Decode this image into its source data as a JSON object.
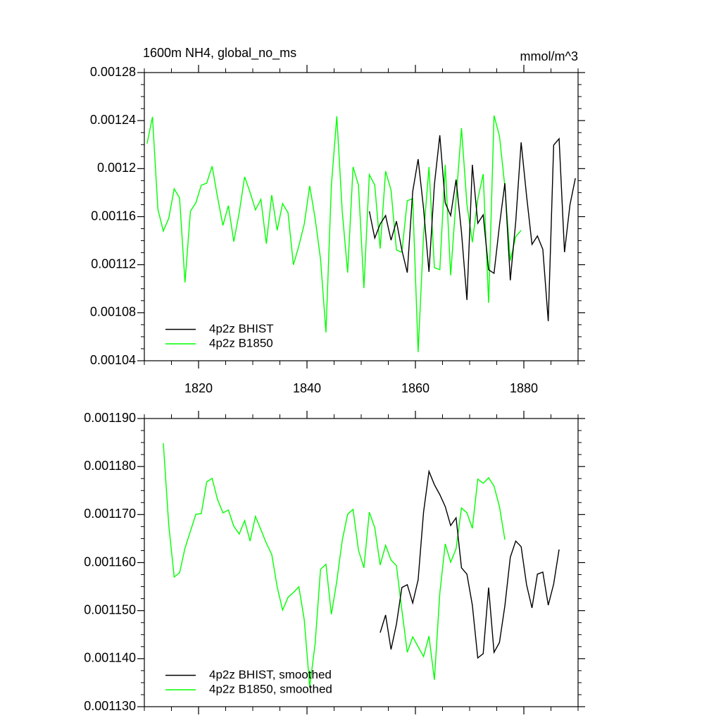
{
  "chart_data": [
    {
      "type": "line",
      "title": "1600m NH4, global_no_ms",
      "units": "mmol/m^3",
      "xlim": [
        1810,
        1890
      ],
      "xticks": [
        1820,
        1840,
        1860,
        1880
      ],
      "ylim": [
        0.00104,
        0.00128
      ],
      "yticks": [
        0.00104,
        0.00108,
        0.00112,
        0.00116,
        0.0012,
        0.00124,
        0.00128
      ],
      "legend": "bottom-left",
      "series": [
        {
          "name": "4p2z BHIST",
          "color": "#000000",
          "x": [
            1851.5,
            1852.5,
            1853.5,
            1854.5,
            1855.5,
            1856.5,
            1857.5,
            1858.5,
            1859.5,
            1860.5,
            1861.5,
            1862.5,
            1863.5,
            1864.5,
            1865.5,
            1866.5,
            1867.5,
            1868.5,
            1869.5,
            1870.5,
            1871.5,
            1872.5,
            1873.5,
            1874.5,
            1875.5,
            1876.5,
            1877.5,
            1878.5,
            1879.5,
            1880.5,
            1881.5,
            1882.5,
            1883.5,
            1884.5,
            1885.5,
            1886.5,
            1887.5,
            1888.5,
            1889.5
          ],
          "values": [
            0.0011645,
            0.0011422,
            0.0011539,
            0.0011609,
            0.0011404,
            0.0011562,
            0.0011322,
            0.0011134,
            0.0011809,
            0.0012079,
            0.0011668,
            0.001114,
            0.0011867,
            0.0012278,
            0.0011715,
            0.0011609,
            0.0011909,
            0.0011469,
            0.0010906,
            0.0012032,
            0.0011545,
            0.0011615,
            0.0011158,
            0.0011128,
            0.0011527,
            0.0011879,
            0.001107,
            0.0011557,
            0.0012219,
            0.0011774,
            0.0011369,
            0.0011439,
            0.0011328,
            0.001073,
            0.0012196,
            0.0012249,
            0.0011304,
            0.0011697,
            0.001192
          ]
        },
        {
          "name": "4p2z B1850",
          "color": "#00ff00",
          "x": [
            1810.5,
            1811.5,
            1812.5,
            1813.5,
            1814.5,
            1815.5,
            1816.5,
            1817.5,
            1818.5,
            1819.5,
            1820.5,
            1821.5,
            1822.5,
            1823.5,
            1824.5,
            1825.5,
            1826.5,
            1827.5,
            1828.5,
            1829.5,
            1830.5,
            1831.5,
            1832.5,
            1833.5,
            1834.5,
            1835.5,
            1836.5,
            1837.5,
            1838.5,
            1839.5,
            1840.5,
            1841.5,
            1842.5,
            1843.5,
            1844.5,
            1845.5,
            1846.5,
            1847.5,
            1848.5,
            1849.5,
            1850.5,
            1851.5,
            1852.5,
            1853.5,
            1854.5,
            1855.5,
            1856.5,
            1857.5,
            1858.5,
            1859.5,
            1860.5,
            1861.5,
            1862.5,
            1863.5,
            1864.5,
            1865.5,
            1866.5,
            1867.5,
            1868.5,
            1869.5,
            1870.5,
            1871.5,
            1872.5,
            1873.5,
            1874.5,
            1875.5,
            1876.5,
            1877.5,
            1878.5,
            1879.5
          ],
          "values": [
            0.0012208,
            0.0012431,
            0.0011662,
            0.001148,
            0.0011586,
            0.0011832,
            0.0011756,
            0.0011052,
            0.0011645,
            0.0011715,
            0.0011862,
            0.0011879,
            0.001202,
            0.0011762,
            0.0011527,
            0.0011692,
            0.0011392,
            0.0011633,
            0.0011932,
            0.0011803,
            0.0011656,
            0.0011744,
            0.0011375,
            0.0011779,
            0.0011486,
            0.0011709,
            0.0011633,
            0.0011199,
            0.0011357,
            0.0011539,
            0.0011856,
            0.0011586,
            0.0011246,
            0.0010636,
            0.0011862,
            0.0012436,
            0.0011645,
            0.0011134,
            0.0012014,
            0.0011862,
            0.0011005,
            0.001195,
            0.0011862,
            0.0011334,
            0.0011979,
            0.0011821,
            0.0011322,
            0.0011304,
            0.0011733,
            0.001175,
            0.0010472,
            0.0011445,
            0.0012014,
            0.0011175,
            0.0011158,
            0.0012032,
            0.0011111,
            0.0011744,
            0.0012337,
            0.0011703,
            0.0011387,
            0.0011744,
            0.0011955,
            0.0010882,
            0.0012442,
            0.0012272,
            0.001185,
            0.0011234,
            0.0011433,
            0.0011486
          ]
        }
      ]
    },
    {
      "type": "line",
      "ylim": [
        0.00113,
        0.00119
      ],
      "yticks": [
        {
          "value": 0.00113,
          "label": "0.001130"
        },
        {
          "value": 0.00114,
          "label": "0.001140"
        },
        {
          "value": 0.00115,
          "label": "0.001150"
        },
        {
          "value": 0.00116,
          "label": "0.001160"
        },
        {
          "value": 0.00117,
          "label": "0.001170"
        },
        {
          "value": 0.00118,
          "label": "0.001180"
        },
        {
          "value": 0.00119,
          "label": "0.001190"
        }
      ],
      "legend": "bottom-left",
      "series": [
        {
          "name": "4p2z BHIST, smoothed",
          "color": "#000000",
          "x": [
            1853.5,
            1854.5,
            1855.5,
            1856.5,
            1857.5,
            1858.5,
            1859.5,
            1860.5,
            1861.5,
            1862.5,
            1863.5,
            1864.5,
            1865.5,
            1866.5,
            1867.5,
            1868.5,
            1869.5,
            1870.5,
            1871.5,
            1872.5,
            1873.5,
            1874.5,
            1875.5,
            1876.5,
            1877.5,
            1878.5,
            1879.5,
            1880.5,
            1881.5,
            1882.5,
            1883.5,
            1884.5,
            1885.5,
            1886.5
          ],
          "values": [
            0.00114542,
            0.00114909,
            0.00114191,
            0.00114718,
            0.00115481,
            0.0011554,
            0.00115158,
            0.00115642,
            0.0011705,
            0.001179,
            0.00117622,
            0.00117416,
            0.00117167,
            0.00116771,
            0.00116933,
            0.00115891,
            0.00115759,
            0.00115114,
            0.00114015,
            0.00114103,
            0.00115481,
            0.00114132,
            0.00114337,
            0.001151,
            0.00116111,
            0.00116449,
            0.00116331,
            0.0011554,
            0.00115056,
            0.00115759,
            0.00115803,
            0.00115114,
            0.00115554,
            0.00116273
          ]
        },
        {
          "name": "4p2z B1850, smoothed",
          "color": "#00ff00",
          "x": [
            1813.5,
            1814.5,
            1815.5,
            1816.5,
            1817.5,
            1818.5,
            1819.5,
            1820.5,
            1821.5,
            1822.5,
            1823.5,
            1824.5,
            1825.5,
            1826.5,
            1827.5,
            1828.5,
            1829.5,
            1830.5,
            1831.5,
            1832.5,
            1833.5,
            1834.5,
            1835.5,
            1836.5,
            1837.5,
            1838.5,
            1839.5,
            1840.5,
            1841.5,
            1842.5,
            1843.5,
            1844.5,
            1845.5,
            1846.5,
            1847.5,
            1848.5,
            1849.5,
            1850.5,
            1851.5,
            1852.5,
            1853.5,
            1854.5,
            1855.5,
            1856.5,
            1857.5,
            1858.5,
            1859.5,
            1860.5,
            1861.5,
            1862.5,
            1863.5,
            1864.5,
            1865.5,
            1866.5,
            1867.5,
            1868.5,
            1869.5,
            1870.5,
            1871.5,
            1872.5,
            1873.5,
            1874.5,
            1875.5,
            1876.5
          ],
          "values": [
            0.00118487,
            0.00116786,
            0.00115701,
            0.00115789,
            0.00116302,
            0.00116654,
            0.00117006,
            0.0011702,
            0.0011768,
            0.00117754,
            0.00117314,
            0.00117035,
            0.00117094,
            0.00116757,
            0.00116595,
            0.00116874,
            0.00116449,
            0.00116962,
            0.00116683,
            0.00116405,
            0.0011617,
            0.00115496,
            0.00115012,
            0.00115276,
            0.00115378,
            0.00115496,
            0.00114806,
            0.00113413,
            0.00114308,
            0.00115862,
            0.00115965,
            0.00114924,
            0.00115613,
            0.00116463,
            0.00117006,
            0.00117108,
            0.00116258,
            0.00115891,
            0.0011705,
            0.00116727,
            0.0011595,
            0.00116361,
            0.00116053,
            0.00115935,
            0.00115012,
            0.00114132,
            0.00114454,
            0.00114249,
            0.00114044,
            0.00114469,
            0.0011356,
            0.00115364,
            0.0011639,
            0.00116009,
            0.00116287,
            0.00117138,
            0.00117035,
            0.00116713,
            0.00117739,
            0.00117651,
            0.00117768,
            0.00117592,
            0.00117167,
            0.00116478
          ]
        }
      ]
    }
  ]
}
